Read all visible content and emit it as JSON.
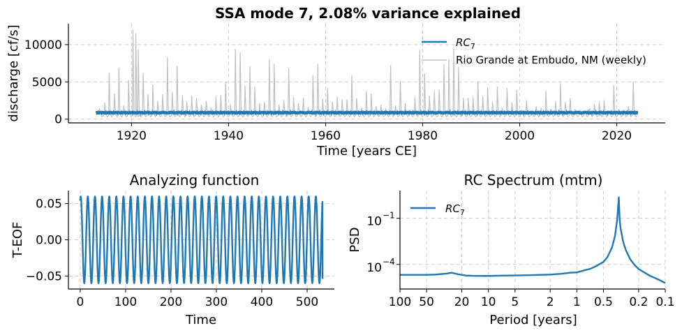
{
  "figure": {
    "suptitle": "SSA  mode 7, 2.08% variance explained"
  },
  "chart_data": [
    {
      "type": "line",
      "id": "top",
      "title": "SSA  mode 7, 2.08% variance explained",
      "xlabel": "Time [years CE]",
      "ylabel": "discharge [cf/s]",
      "xlim": [
        1907,
        2030
      ],
      "ylim": [
        -500,
        12800
      ],
      "xticks": [
        1920,
        1940,
        1960,
        1980,
        2000,
        2020
      ],
      "xtick_labels": [
        "1920",
        "1940",
        "1960",
        "1980",
        "2000",
        "2020"
      ],
      "yticks": [
        0,
        5000,
        10000
      ],
      "ytick_labels": [
        "0",
        "5000",
        "10000"
      ],
      "grid": true,
      "legend_position": "upper right",
      "x_start": 1912.7,
      "x_end": 2024.3,
      "series": [
        {
          "name": "RC_7",
          "legend_main": "RC",
          "legend_sub": "7",
          "color": "#1f77b4",
          "kind": "rc",
          "baseline": 870,
          "amplitude": 250
        },
        {
          "name": "Rio Grande at Embudo, NM (weekly)",
          "color": "#c0c0c0",
          "kind": "raw",
          "base": 600,
          "peaks": [
            [
              1913.4,
              1400
            ],
            [
              1914.5,
              2200
            ],
            [
              1915.4,
              6200
            ],
            [
              1916.5,
              3400
            ],
            [
              1917.4,
              6900
            ],
            [
              1918.4,
              1800
            ],
            [
              1919.4,
              5200
            ],
            [
              1920.3,
              12000
            ],
            [
              1920.9,
              11500
            ],
            [
              1921.4,
              9300
            ],
            [
              1922.4,
              6200
            ],
            [
              1923.4,
              3300
            ],
            [
              1924.4,
              4600
            ],
            [
              1925.4,
              2400
            ],
            [
              1926.4,
              3300
            ],
            [
              1927.4,
              8300
            ],
            [
              1928.4,
              3600
            ],
            [
              1929.4,
              7100
            ],
            [
              1930.5,
              3200
            ],
            [
              1931.4,
              2300
            ],
            [
              1932.4,
              3100
            ],
            [
              1933.4,
              2800
            ],
            [
              1934.4,
              1900
            ],
            [
              1935.4,
              2400
            ],
            [
              1936.4,
              1500
            ],
            [
              1937.4,
              3000
            ],
            [
              1938.4,
              3200
            ],
            [
              1939.4,
              5000
            ],
            [
              1940.4,
              2000
            ],
            [
              1941.4,
              9400
            ],
            [
              1942.4,
              8900
            ],
            [
              1943.4,
              4500
            ],
            [
              1944.4,
              7000
            ],
            [
              1945.4,
              4300
            ],
            [
              1946.4,
              2100
            ],
            [
              1947.4,
              2300
            ],
            [
              1948.4,
              8000
            ],
            [
              1949.4,
              7400
            ],
            [
              1950.4,
              1900
            ],
            [
              1951.4,
              2500
            ],
            [
              1952.4,
              6800
            ],
            [
              1953.4,
              2900
            ],
            [
              1954.4,
              2100
            ],
            [
              1955.4,
              2800
            ],
            [
              1956.4,
              1600
            ],
            [
              1957.4,
              5900
            ],
            [
              1958.4,
              7400
            ],
            [
              1959.4,
              2700
            ],
            [
              1960.4,
              4100
            ],
            [
              1961.4,
              2300
            ],
            [
              1962.4,
              3000
            ],
            [
              1963.4,
              2600
            ],
            [
              1964.4,
              2600
            ],
            [
              1965.4,
              5900
            ],
            [
              1966.4,
              2800
            ],
            [
              1967.4,
              1500
            ],
            [
              1968.4,
              3800
            ],
            [
              1969.4,
              3400
            ],
            [
              1970.4,
              1700
            ],
            [
              1971.4,
              1900
            ],
            [
              1972.4,
              1400
            ],
            [
              1973.4,
              7200
            ],
            [
              1974.4,
              1800
            ],
            [
              1975.4,
              5100
            ],
            [
              1976.4,
              2100
            ],
            [
              1977.4,
              1200
            ],
            [
              1978.4,
              2900
            ],
            [
              1979.4,
              9300
            ],
            [
              1980.4,
              6100
            ],
            [
              1981.4,
              3100
            ],
            [
              1982.4,
              3800
            ],
            [
              1983.4,
              3900
            ],
            [
              1984.4,
              7300
            ],
            [
              1985.4,
              8000
            ],
            [
              1986.4,
              9400
            ],
            [
              1987.4,
              7000
            ],
            [
              1988.4,
              2800
            ],
            [
              1989.4,
              2800
            ],
            [
              1990.4,
              2900
            ],
            [
              1991.4,
              5000
            ],
            [
              1992.4,
              3000
            ],
            [
              1993.4,
              4200
            ],
            [
              1994.4,
              2300
            ],
            [
              1995.4,
              4300
            ],
            [
              1996.4,
              1500
            ],
            [
              1997.4,
              4100
            ],
            [
              1998.4,
              2200
            ],
            [
              1999.4,
              3900
            ],
            [
              2000.4,
              1200
            ],
            [
              2001.4,
              2500
            ],
            [
              2002.4,
              1000
            ],
            [
              2003.4,
              1700
            ],
            [
              2004.4,
              1500
            ],
            [
              2005.4,
              3800
            ],
            [
              2006.4,
              1400
            ],
            [
              2007.4,
              2400
            ],
            [
              2008.4,
              4800
            ],
            [
              2009.4,
              2300
            ],
            [
              2010.4,
              2800
            ],
            [
              2011.4,
              1300
            ],
            [
              2012.4,
              1200
            ],
            [
              2013.4,
              1100
            ],
            [
              2014.4,
              1400
            ],
            [
              2015.4,
              2000
            ],
            [
              2016.4,
              2300
            ],
            [
              2017.4,
              2500
            ],
            [
              2018.4,
              1000
            ],
            [
              2019.4,
              4500
            ],
            [
              2020.4,
              1300
            ],
            [
              2021.4,
              1200
            ],
            [
              2022.4,
              1700
            ],
            [
              2023.4,
              5000
            ]
          ]
        }
      ]
    },
    {
      "type": "line",
      "id": "eof",
      "title": "Analyzing function",
      "xlabel": "Time",
      "ylabel": "T-EOF",
      "xlim": [
        -26,
        560
      ],
      "ylim": [
        -0.068,
        0.068
      ],
      "xticks": [
        0,
        100,
        200,
        300,
        400,
        500
      ],
      "xtick_labels": [
        "0",
        "100",
        "200",
        "300",
        "400",
        "500"
      ],
      "yticks": [
        -0.05,
        0.0,
        0.05
      ],
      "ytick_labels": [
        "−0.05",
        "0.00",
        "0.05"
      ],
      "grid": true,
      "series": [
        {
          "name": "T-EOF",
          "color": "#1f77b4",
          "x_start": 0,
          "x_end": 534,
          "amplitude": 0.06,
          "period": 15.7,
          "start_value": 0.054,
          "end_value": -0.054
        }
      ]
    },
    {
      "type": "line",
      "id": "spec",
      "title": "RC Spectrum (mtm)",
      "xlabel": "Period [years]",
      "ylabel": "PSD",
      "xscale": "log",
      "yscale": "log",
      "xaxis_inverted": true,
      "xlim": [
        100,
        0.1
      ],
      "ylim_log10": [
        -5.6,
        0.8
      ],
      "xticks": [
        100,
        50,
        20,
        10,
        5,
        2,
        1,
        0.5,
        0.2,
        0.1
      ],
      "xtick_labels": [
        "100",
        "50",
        "20",
        "10",
        "5",
        "2",
        "1",
        "0.5",
        "0.2",
        "0.1"
      ],
      "yticks_log10": [
        -4,
        -1
      ],
      "ytick_labels": [
        {
          "base": "10",
          "exp": "−4"
        },
        {
          "base": "10",
          "exp": "−1"
        }
      ],
      "grid": true,
      "legend_position": "upper left",
      "series": [
        {
          "name": "RC_7",
          "legend_main": "RC",
          "legend_sub": "7",
          "color": "#1f77b4",
          "points": [
            [
              100,
              2.09e-05
            ],
            [
              70,
              2.09e-05
            ],
            [
              50,
              2.09e-05
            ],
            [
              40,
              2.19e-05
            ],
            [
              30,
              2.51e-05
            ],
            [
              26,
              2.88e-05
            ],
            [
              22,
              2.29e-05
            ],
            [
              18,
              1.88e-05
            ],
            [
              15,
              1.81e-05
            ],
            [
              10,
              1.78e-05
            ],
            [
              7,
              1.86e-05
            ],
            [
              5,
              1.91e-05
            ],
            [
              3,
              2.04e-05
            ],
            [
              2,
              2.19e-05
            ],
            [
              1.5,
              2.45e-05
            ],
            [
              1.2,
              2.88e-05
            ],
            [
              1,
              3.02e-05
            ],
            [
              0.8,
              4.27e-05
            ],
            [
              0.7,
              5.25e-05
            ],
            [
              0.6,
              7.94e-05
            ],
            [
              0.5,
              0.000145
            ],
            [
              0.45,
              0.000302
            ],
            [
              0.4,
              0.00126
            ],
            [
              0.37,
              0.00708
            ],
            [
              0.35,
              0.0794
            ],
            [
              0.345,
              0.224
            ],
            [
              0.335,
              2.29
            ],
            [
              0.328,
              0.0891
            ],
            [
              0.32,
              0.0224
            ],
            [
              0.3,
              0.00316
            ],
            [
              0.28,
              0.000891
            ],
            [
              0.25,
              0.000224
            ],
            [
              0.22,
              8.51e-05
            ],
            [
              0.2,
              5.01e-05
            ],
            [
              0.15,
              1.86e-05
            ],
            [
              0.12,
              1.05e-05
            ],
            [
              0.1,
              6.17e-06
            ]
          ]
        }
      ]
    }
  ]
}
